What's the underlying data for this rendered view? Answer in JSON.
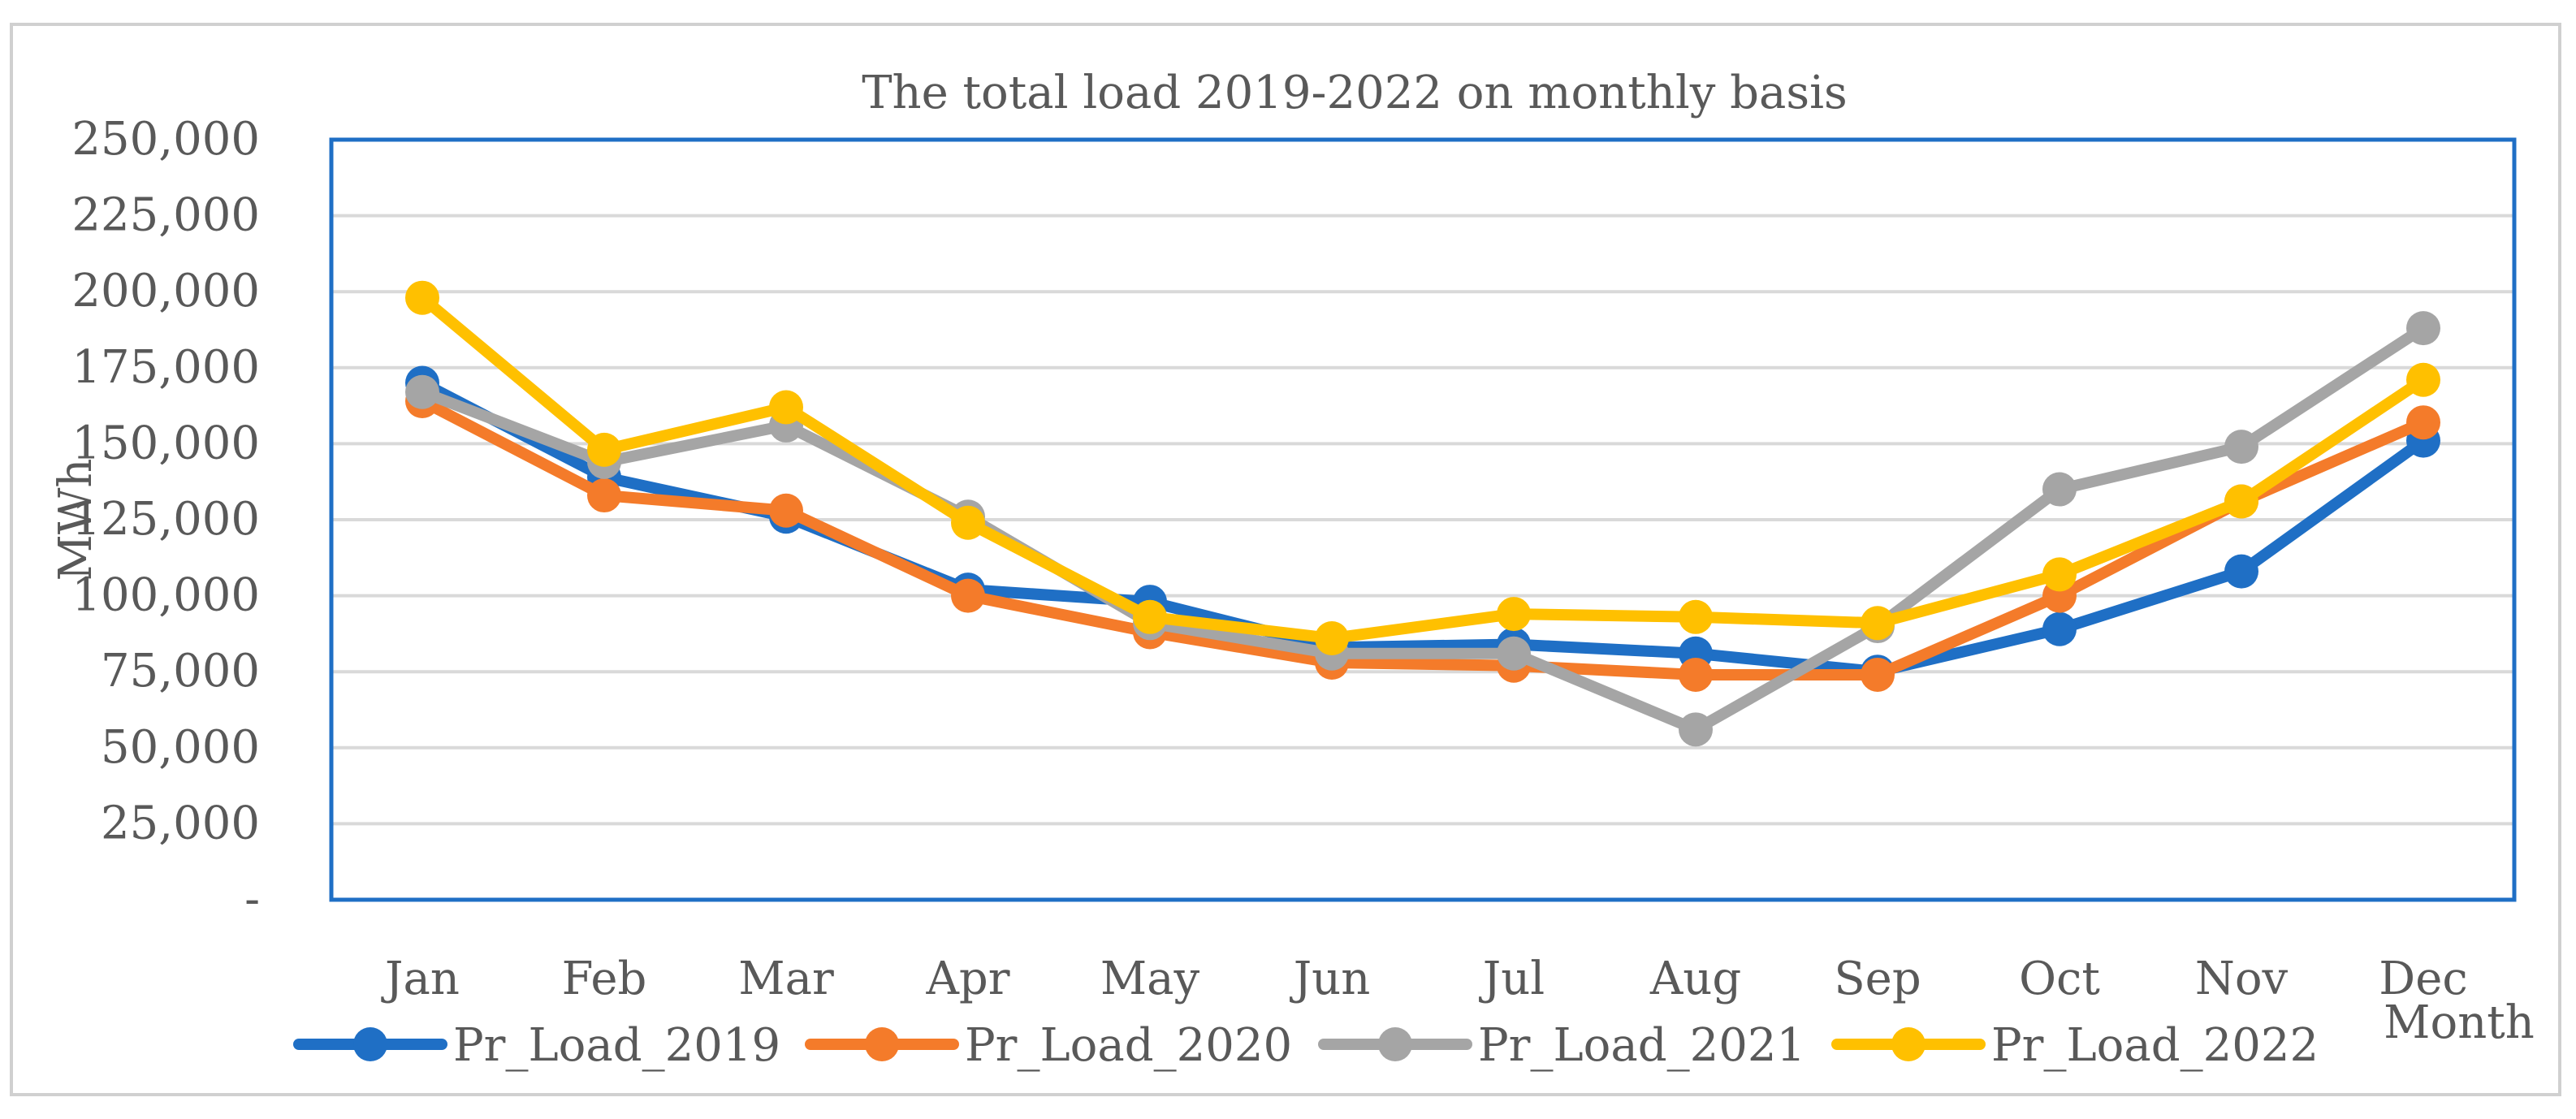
{
  "chart_data": {
    "type": "line",
    "title": "The total load 2019-2022 on monthly basis",
    "xlabel": "Month",
    "ylabel": "MWh",
    "ylim": [
      0,
      250000
    ],
    "yticks": [
      0,
      25000,
      50000,
      75000,
      100000,
      125000,
      150000,
      175000,
      200000,
      225000,
      250000
    ],
    "ytick_labels": [
      "-",
      "25,000",
      "50,000",
      "75,000",
      "100,000",
      "125,000",
      "150,000",
      "175,000",
      "200,000",
      "225,000",
      "250,000"
    ],
    "categories": [
      "Jan",
      "Feb",
      "Mar",
      "Apr",
      "May",
      "Jun",
      "Jul",
      "Aug",
      "Sep",
      "Oct",
      "Nov",
      "Dec"
    ],
    "grid": true,
    "legend_position": "bottom",
    "series": [
      {
        "name": "Pr_Load_2019",
        "color": "#1f6fc5",
        "values": [
          170000,
          139000,
          126000,
          102000,
          98000,
          83000,
          84000,
          81000,
          75000,
          89000,
          108000,
          151000
        ]
      },
      {
        "name": "Pr_Load_2020",
        "color": "#f47b2a",
        "values": [
          164000,
          133000,
          128000,
          100000,
          88000,
          78000,
          77000,
          74000,
          74000,
          100000,
          131000,
          157000
        ]
      },
      {
        "name": "Pr_Load_2021",
        "color": "#a5a5a5",
        "values": [
          167000,
          144000,
          156000,
          126000,
          91000,
          81000,
          81000,
          56000,
          90000,
          135000,
          149000,
          188000
        ]
      },
      {
        "name": "Pr_Load_2022",
        "color": "#ffc000",
        "values": [
          198000,
          148000,
          162000,
          124000,
          93000,
          86000,
          94000,
          93000,
          91000,
          107000,
          131000,
          171000
        ]
      }
    ]
  }
}
